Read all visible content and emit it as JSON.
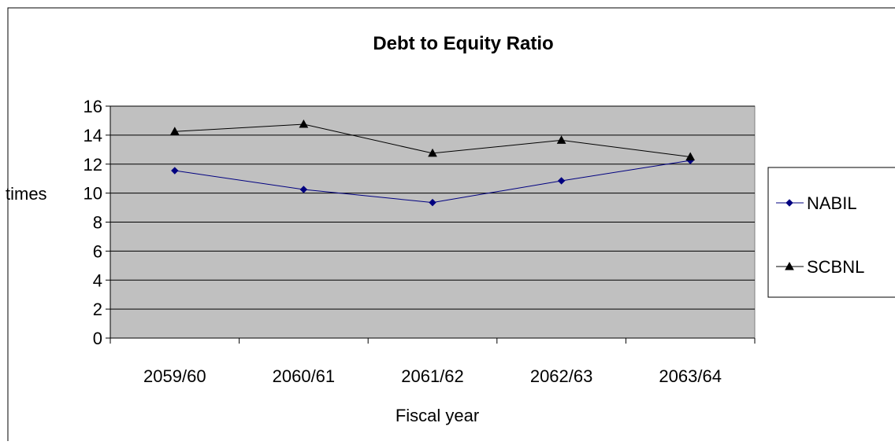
{
  "chart_data": {
    "type": "line",
    "title": "Debt to Equity Ratio",
    "xlabel": "Fiscal year",
    "ylabel": "times",
    "categories": [
      "2059/60",
      "2060/61",
      "2061/62",
      "2062/63",
      "2063/64"
    ],
    "ylim": [
      0,
      16
    ],
    "yticks": [
      0,
      2,
      4,
      6,
      8,
      10,
      12,
      14,
      16
    ],
    "grid": true,
    "legend_position": "right",
    "plot_background": "#c0c0c0",
    "series": [
      {
        "name": "NABIL",
        "values": [
          11.55,
          10.25,
          9.35,
          10.85,
          12.25
        ],
        "color": "#000080",
        "marker": "diamond"
      },
      {
        "name": "SCBNL",
        "values": [
          14.25,
          14.75,
          12.75,
          13.65,
          12.5
        ],
        "color": "#000000",
        "marker": "triangle"
      }
    ]
  }
}
